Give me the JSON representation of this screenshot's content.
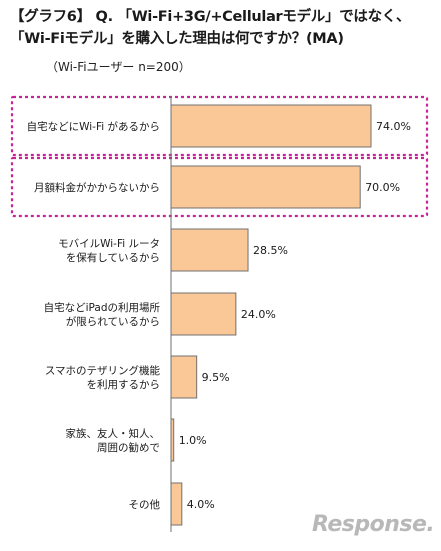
{
  "header": {
    "title_line1": "【グラフ6】 Q. 「Wi-Fi+3G/+Cellularモデル」ではなく、",
    "title_line2": "「Wi-Fiモデル」を購入した理由は何ですか？(MA)",
    "subtitle": "（Wi-Fiユーザー n=200）"
  },
  "chart_data": {
    "type": "bar",
    "orientation": "horizontal",
    "title": "【グラフ6】 Q. 「Wi-Fi+3G/+Cellularモデル」ではなく、「Wi-Fiモデル」を購入した理由は何ですか？(MA)",
    "categories": [
      [
        "自宅などにWi-Fi があるから"
      ],
      [
        "月額料金がかからないから"
      ],
      [
        "モバイルWi-Fi ルータ",
        "を保有しているから"
      ],
      [
        "自宅などiPadの利用場所",
        "が限られているから"
      ],
      [
        "スマホのテザリング機能",
        "を利用するから"
      ],
      [
        "家族、友人・知人、",
        "周囲の勧めで"
      ],
      [
        "その他"
      ]
    ],
    "values": [
      74.0,
      70.0,
      28.5,
      24.0,
      9.5,
      1.0,
      4.0
    ],
    "value_labels": [
      "74.0%",
      "70.0%",
      "28.5%",
      "24.0%",
      "9.5%",
      "1.0%",
      "4.0%"
    ],
    "highlighted_categories": [
      0,
      1
    ],
    "grid": false,
    "legend": "none"
  },
  "colors": {
    "bar_fill": "#fac896",
    "bar_stroke": "#707070",
    "highlight_border": "#cc2299",
    "axis": "#707070"
  },
  "watermark": "Response."
}
